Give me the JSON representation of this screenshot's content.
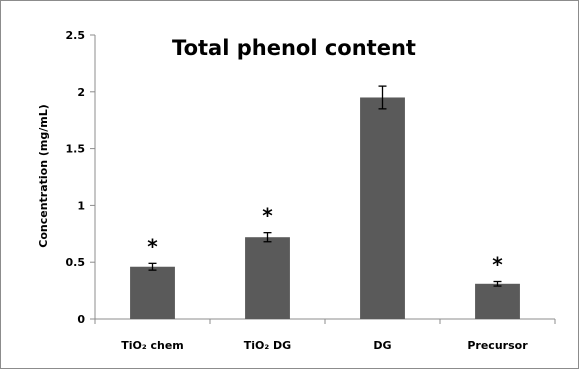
{
  "chart_data": {
    "type": "bar",
    "title": "Total phenol content",
    "xlabel": "",
    "ylabel": "Concentration (mg/mL)",
    "ylim": [
      0,
      2.5
    ],
    "yticks": [
      "0",
      "0.5",
      "1",
      "1.5",
      "2",
      "2.5"
    ],
    "categories": [
      "TiO₂ chem",
      "TiO₂ DG",
      "DG",
      "Precursor"
    ],
    "values": [
      0.46,
      0.72,
      1.95,
      0.31
    ],
    "errors": [
      0.03,
      0.04,
      0.1,
      0.02
    ],
    "significance": [
      "*",
      "*",
      "",
      "*"
    ],
    "grid": false,
    "bar_color": "#5a5a5a",
    "error_color": "#000000"
  }
}
